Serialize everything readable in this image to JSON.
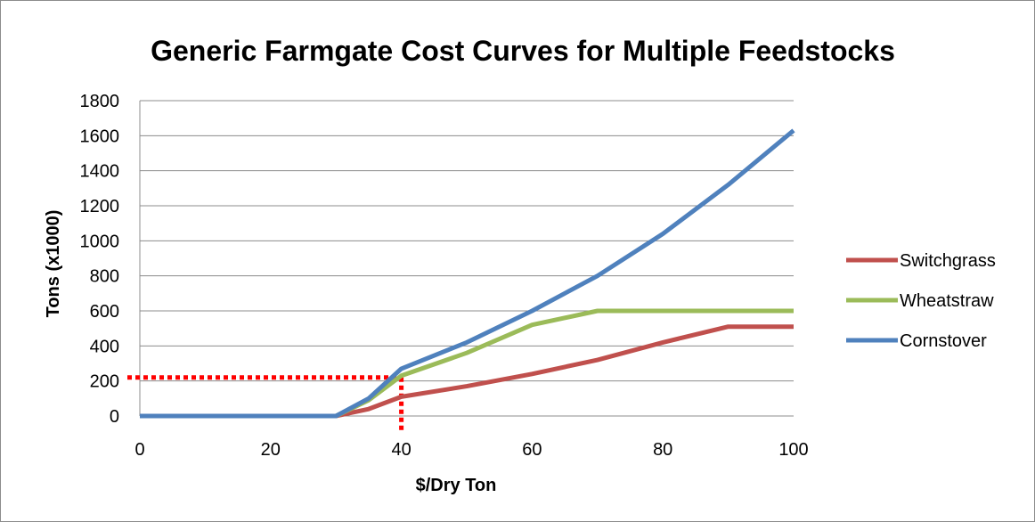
{
  "chart_data": {
    "type": "line",
    "title": "Generic Farmgate Cost Curves for Multiple Feedstocks",
    "xlabel": "$/Dry Ton",
    "ylabel": "Tons (x1000)",
    "xlim": [
      0,
      100
    ],
    "ylim": [
      0,
      1800
    ],
    "xticks": [
      0,
      20,
      40,
      60,
      80,
      100
    ],
    "yticks": [
      0,
      200,
      400,
      600,
      800,
      1000,
      1200,
      1400,
      1600,
      1800
    ],
    "grid": "horizontal",
    "legend_position": "right",
    "series": [
      {
        "name": "Switchgrass",
        "color": "#C0504D",
        "x": [
          0,
          30,
          35,
          40,
          50,
          60,
          70,
          80,
          90,
          100
        ],
        "y": [
          0,
          0,
          40,
          110,
          170,
          240,
          320,
          420,
          510,
          510
        ]
      },
      {
        "name": "Wheatstraw",
        "color": "#9BBB59",
        "x": [
          0,
          30,
          35,
          40,
          50,
          60,
          70,
          80,
          90,
          100
        ],
        "y": [
          0,
          0,
          90,
          230,
          360,
          520,
          600,
          600,
          600,
          600
        ]
      },
      {
        "name": "Cornstover",
        "color": "#4F81BD",
        "x": [
          0,
          30,
          35,
          40,
          50,
          60,
          70,
          80,
          90,
          100
        ],
        "y": [
          0,
          0,
          100,
          270,
          420,
          600,
          800,
          1040,
          1320,
          1630
        ]
      }
    ],
    "annotation": {
      "type": "dotted-guide",
      "color": "#FF0000",
      "x": 40,
      "y": 220
    }
  }
}
